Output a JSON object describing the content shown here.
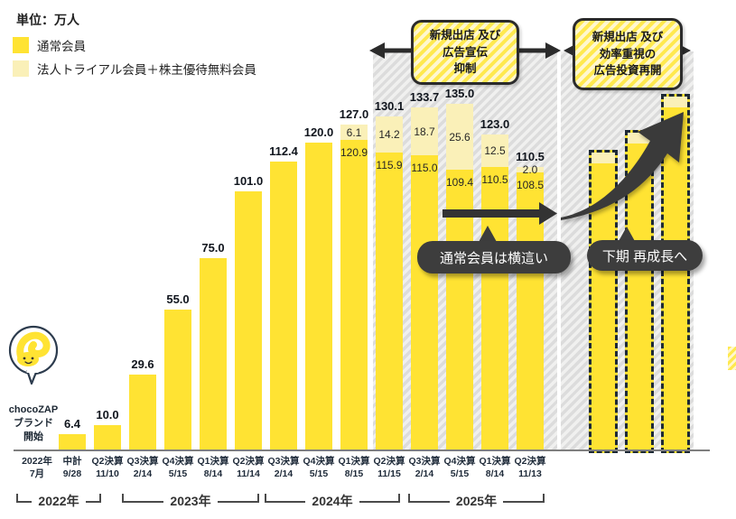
{
  "unit_label": "単位：万人",
  "legend": [
    {
      "label": "通常会員",
      "color": "#FFE333"
    },
    {
      "label": "法人トライアル会員＋株主優待無料会員",
      "color": "#FAF0B8"
    }
  ],
  "annotations": {
    "restraint_box": {
      "line1": "新規出店 及び",
      "line2": "広告宣伝",
      "line3_bold": "抑制"
    },
    "restart_box": {
      "line1": "新規出店 及び",
      "line2": "効率重視の",
      "line3_normal": "広告投資",
      "line3_bold": "再開"
    }
  },
  "callouts": {
    "flat_members": "通常会員は横這い",
    "regrowth": "下期 再成長へ"
  },
  "mascot": {
    "line1": "chocoZAP",
    "line2": "ブランド",
    "line3": "開始"
  },
  "colors": {
    "normal_member": "#FFE333",
    "trial_member": "#FAF0B8",
    "callout_bg": "#3d3d3d",
    "arrow_dark": "#333333",
    "annotation_border": "#2b2b2b",
    "dashed_bar_border": "#1d2936"
  },
  "chart_data": {
    "type": "bar",
    "stacked": true,
    "unit": "万人",
    "ylim": [
      0,
      140
    ],
    "series_names": [
      "通常会員",
      "法人トライアル会員＋株主優待無料会員"
    ],
    "categories": [
      {
        "line1": "2022年",
        "line2": "7月"
      },
      {
        "line1": "中計",
        "line2": "9/28"
      },
      {
        "line1": "Q2決算",
        "line2": "11/10"
      },
      {
        "line1": "Q3決算",
        "line2": "2/14"
      },
      {
        "line1": "Q4決算",
        "line2": "5/15"
      },
      {
        "line1": "Q1決算",
        "line2": "8/14"
      },
      {
        "line1": "Q2決算",
        "line2": "11/14"
      },
      {
        "line1": "Q3決算",
        "line2": "2/14"
      },
      {
        "line1": "Q4決算",
        "line2": "5/15"
      },
      {
        "line1": "Q1決算",
        "line2": "8/15"
      },
      {
        "line1": "Q2決算",
        "line2": "11/15"
      },
      {
        "line1": "Q3決算",
        "line2": "2/14"
      },
      {
        "line1": "Q4決算",
        "line2": "5/15"
      },
      {
        "line1": "Q1決算",
        "line2": "8/14"
      },
      {
        "line1": "Q2決算",
        "line2": "11/13"
      }
    ],
    "bars": [
      {
        "slot": 1,
        "total": 6.4
      },
      {
        "slot": 2,
        "total": 10.0
      },
      {
        "slot": 3,
        "total": 29.6
      },
      {
        "slot": 4,
        "total": 55.0
      },
      {
        "slot": 5,
        "total": 75.0
      },
      {
        "slot": 6,
        "total": 101.0
      },
      {
        "slot": 7,
        "total": 112.4
      },
      {
        "slot": 8,
        "total": 120.0
      },
      {
        "slot": 9,
        "total": 127.0,
        "normal": 120.9,
        "trial": 6.1
      },
      {
        "slot": 10,
        "total": 130.1,
        "normal": 115.9,
        "trial": 14.2
      },
      {
        "slot": 11,
        "total": 133.7,
        "normal": 115.0,
        "trial": 18.7
      },
      {
        "slot": 12,
        "total": 135.0,
        "normal": 109.4,
        "trial": 25.6
      },
      {
        "slot": 13,
        "total": 123.0,
        "normal": 110.5,
        "trial": 12.5
      },
      {
        "slot": 14,
        "total": 110.5,
        "normal": 108.5,
        "trial": 2.0
      }
    ],
    "year_groups": [
      {
        "label": "2022年",
        "from": 0,
        "to": 2
      },
      {
        "label": "2023年",
        "from": 3,
        "to": 6
      },
      {
        "label": "2024年",
        "from": 7,
        "to": 10
      },
      {
        "label": "2025年",
        "from": 11,
        "to": 14
      }
    ],
    "forecast_bars": {
      "labeled": false,
      "estimated_totals": [
        118,
        126,
        140
      ]
    }
  }
}
